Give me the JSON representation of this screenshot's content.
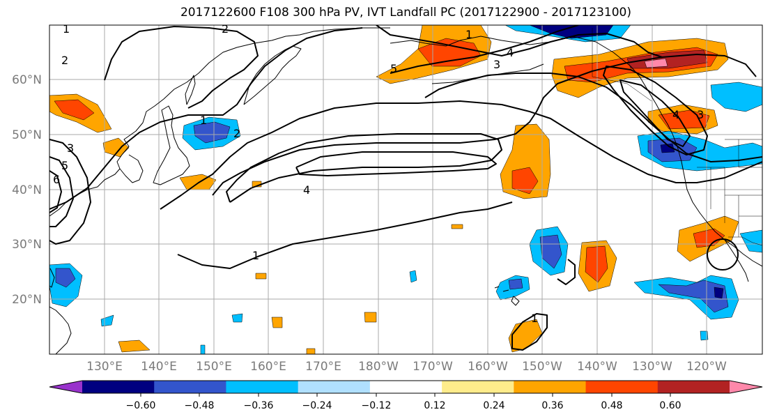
{
  "title": "2017122600 F108 300 hPa PV, IVT Landfall PC (2017122900 - 2017123100)",
  "lat_labels": [
    "60°N",
    "50°N",
    "40°N",
    "30°N",
    "20°N"
  ],
  "lon_labels": [
    "130°E",
    "140°E",
    "150°E",
    "160°E",
    "170°E",
    "180°W",
    "170°W",
    "160°W",
    "150°W",
    "140°W",
    "130°W",
    "120°W"
  ],
  "colorbar": {
    "colors": [
      "#9933cc",
      "#000080",
      "#3355cc",
      "#00bfff",
      "#b0e0ff",
      "#ffffff",
      "#ffec8b",
      "#ffa500",
      "#ff4500",
      "#b22222",
      "#ff88aa"
    ],
    "tick_labels": [
      "−0.60",
      "−0.48",
      "−0.36",
      "−0.24",
      "−0.12",
      "0.12",
      "0.24",
      "0.36",
      "0.48",
      "0.60"
    ]
  },
  "pv_contour_labels": [
    "1",
    "2",
    "2",
    "1",
    "3",
    "5",
    "6",
    "4",
    "3",
    "2",
    "5",
    "4",
    "3",
    "4",
    "1",
    "1",
    "1"
  ]
}
